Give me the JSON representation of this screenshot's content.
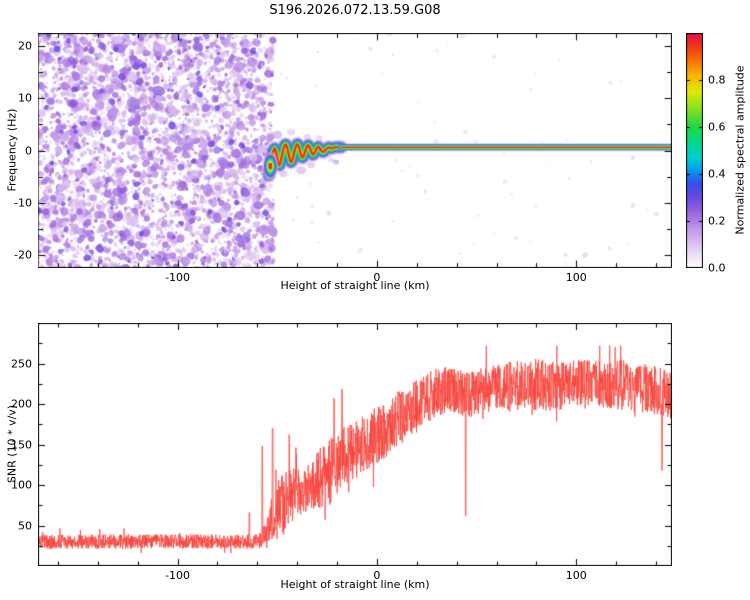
{
  "title": "S196.2026.072.13.59.G08",
  "colors": {
    "frame": "#000000",
    "background": "#ffffff",
    "snr_line": "#f9423a"
  },
  "colormap": {
    "stops": [
      [
        0.0,
        "#ffffff"
      ],
      [
        0.06,
        "#ecdcf6"
      ],
      [
        0.15,
        "#c9a2ea"
      ],
      [
        0.24,
        "#9a63dd"
      ],
      [
        0.3,
        "#6a49e0"
      ],
      [
        0.36,
        "#3350e8"
      ],
      [
        0.42,
        "#00a0f0"
      ],
      [
        0.47,
        "#00cfd0"
      ],
      [
        0.53,
        "#00d890"
      ],
      [
        0.6,
        "#20d840"
      ],
      [
        0.68,
        "#8ae020"
      ],
      [
        0.75,
        "#e0e800"
      ],
      [
        0.82,
        "#f8b400"
      ],
      [
        0.9,
        "#f86000"
      ],
      [
        0.96,
        "#ee2828"
      ],
      [
        1.0,
        "#d81440"
      ]
    ]
  },
  "chart_data": [
    {
      "type": "heatmap",
      "name": "spectrogram",
      "title": "S196.2026.072.13.59.G08",
      "xlabel": "Height of straight line (km)",
      "ylabel": "Frequency (Hz)",
      "x_range": [
        -170,
        148
      ],
      "y_range": [
        -22.5,
        22.5
      ],
      "x_ticks": [
        -100,
        0,
        100
      ],
      "y_ticks": [
        -20,
        -10,
        0,
        10,
        20
      ],
      "x_minor_step": 20,
      "y_minor_step": 5,
      "colorbar": {
        "label": "Normalized spectral amplitude",
        "range": [
          0,
          1
        ],
        "ticks": [
          0.0,
          0.2,
          0.4,
          0.6,
          0.8
        ]
      },
      "noise_region": {
        "x_range": [
          -170,
          -52
        ],
        "description": "dense low-amplitude purple speckle noise before signal onset",
        "seed": 1337,
        "counts": {
          "small": 3000,
          "medium": 700,
          "dark": 260
        }
      },
      "sparse_speckle": {
        "x_range": [
          -52,
          148
        ],
        "count": 70,
        "seed": 777
      },
      "signal_trace": {
        "description": "high-amplitude Doppler trace: oscillatory near onset at -54 km, then flat near 0.6 Hz to edge",
        "flat_freq": 0.6,
        "flat_x_range": [
          -18,
          148
        ],
        "start_blob": {
          "x": -53.5,
          "freq": -3,
          "rx": 5,
          "ry": 9
        },
        "wiggle_points": [
          [
            -54.2,
            -4.8
          ],
          [
            -53.6,
            -2.8
          ],
          [
            -52.8,
            -1.2
          ],
          [
            -52,
            -0.2
          ],
          [
            -51.2,
            0.4
          ],
          [
            -50.4,
            -0.6
          ],
          [
            -49.6,
            -2.2
          ],
          [
            -48.8,
            -2.8
          ],
          [
            -48,
            -1.6
          ],
          [
            -47.2,
            -0.2
          ],
          [
            -46.4,
            0.9
          ],
          [
            -45.6,
            1.1
          ],
          [
            -44.8,
            0.2
          ],
          [
            -44,
            -1.2
          ],
          [
            -43.2,
            -2.2
          ],
          [
            -42.4,
            -1.8
          ],
          [
            -41.6,
            -0.6
          ],
          [
            -40.8,
            0.6
          ],
          [
            -40,
            1.2
          ],
          [
            -39.2,
            0.8
          ],
          [
            -38.4,
            -0.4
          ],
          [
            -37.6,
            -1.3
          ],
          [
            -36.8,
            -1.1
          ],
          [
            -36,
            -0.2
          ],
          [
            -35.2,
            0.7
          ],
          [
            -34.4,
            1.0
          ],
          [
            -33.6,
            0.5
          ],
          [
            -32.8,
            -0.4
          ],
          [
            -32,
            -0.8
          ],
          [
            -31.2,
            -0.4
          ],
          [
            -30.4,
            0.3
          ],
          [
            -29.6,
            0.7
          ],
          [
            -28.8,
            0.5
          ],
          [
            -28,
            0.0
          ],
          [
            -27,
            -0.3
          ],
          [
            -26,
            0.0
          ],
          [
            -25,
            0.4
          ],
          [
            -24,
            0.6
          ],
          [
            -23,
            0.4
          ],
          [
            -22,
            0.5
          ],
          [
            -21,
            0.6
          ],
          [
            -20,
            0.6
          ],
          [
            -19,
            0.6
          ],
          [
            -18,
            0.6
          ]
        ],
        "halo_blobs": [
          [
            -50,
            3,
            5,
            0.18
          ],
          [
            -47,
            -4.5,
            4,
            0.15
          ],
          [
            -43,
            3.5,
            4,
            0.13
          ],
          [
            -38,
            -3.8,
            5,
            0.16
          ],
          [
            -35,
            2.6,
            3.5,
            0.13
          ],
          [
            -33,
            -2.8,
            4,
            0.14
          ],
          [
            -29,
            2.4,
            3.5,
            0.12
          ],
          [
            -23,
            -1.8,
            3,
            0.12
          ],
          [
            -20.5,
            -2.2,
            3,
            0.2
          ]
        ]
      }
    },
    {
      "type": "line",
      "name": "snr",
      "xlabel": "Height of straight line (km)",
      "ylabel": "SNR (10 * v/v)",
      "x_range": [
        -170,
        148
      ],
      "ylim": [
        0,
        300
      ],
      "x_ticks": [
        -100,
        0,
        100
      ],
      "y_ticks": [
        50,
        100,
        150,
        200,
        250
      ],
      "x_minor_step": 20,
      "y_minor_step": 25,
      "series": [
        {
          "name": "SNR",
          "color": "#f9423a",
          "seed": 4242,
          "points_per_km": 8,
          "envelope": [
            [
              -170,
              30
            ],
            [
              -60,
              30
            ],
            [
              -55,
              40
            ],
            [
              -52,
              60
            ],
            [
              -48,
              75
            ],
            [
              -44,
              85
            ],
            [
              -40,
              90
            ],
            [
              -36,
              95
            ],
            [
              -32,
              100
            ],
            [
              -28,
              110
            ],
            [
              -24,
              115
            ],
            [
              -20,
              125
            ],
            [
              -16,
              135
            ],
            [
              -12,
              140
            ],
            [
              -8,
              148
            ],
            [
              -4,
              155
            ],
            [
              0,
              162
            ],
            [
              5,
              170
            ],
            [
              10,
              180
            ],
            [
              15,
              190
            ],
            [
              20,
              200
            ],
            [
              25,
              208
            ],
            [
              30,
              214
            ],
            [
              35,
              218
            ],
            [
              40,
              216
            ],
            [
              45,
              210
            ],
            [
              50,
              216
            ],
            [
              60,
              220
            ],
            [
              70,
              222
            ],
            [
              80,
              224
            ],
            [
              90,
              222
            ],
            [
              100,
              226
            ],
            [
              110,
              222
            ],
            [
              120,
              224
            ],
            [
              130,
              220
            ],
            [
              140,
              218
            ],
            [
              148,
              210
            ]
          ],
          "noise_amplitude": [
            [
              -170,
              9
            ],
            [
              -60,
              9
            ],
            [
              -56,
              15
            ],
            [
              -52,
              35
            ],
            [
              -46,
              40
            ],
            [
              -40,
              30
            ],
            [
              -34,
              30
            ],
            [
              -28,
              38
            ],
            [
              -22,
              42
            ],
            [
              -16,
              38
            ],
            [
              -10,
              35
            ],
            [
              0,
              35
            ],
            [
              10,
              35
            ],
            [
              20,
              32
            ],
            [
              30,
              30
            ],
            [
              40,
              28
            ],
            [
              60,
              30
            ],
            [
              80,
              32
            ],
            [
              100,
              30
            ],
            [
              120,
              32
            ],
            [
              148,
              30
            ]
          ],
          "spikes": [
            [
              -64,
              66
            ],
            [
              -57.5,
              148
            ],
            [
              -52.3,
              170
            ],
            [
              -44,
              162
            ],
            [
              -21.5,
              207
            ],
            [
              -17.5,
              218
            ],
            [
              44.5,
              62
            ],
            [
              143,
              118
            ]
          ]
        }
      ]
    }
  ]
}
